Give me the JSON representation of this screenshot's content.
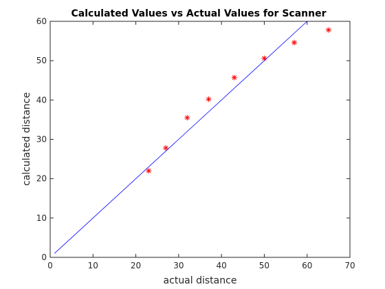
{
  "chart_data": {
    "type": "scatter",
    "title": "Calculated Values vs Actual Values for Scanner",
    "xlabel": "actual distance",
    "ylabel": "calculated distance",
    "xlim": [
      0,
      70
    ],
    "ylim": [
      0,
      60
    ],
    "xticks": [
      0,
      10,
      20,
      30,
      40,
      50,
      60,
      70
    ],
    "yticks": [
      0,
      10,
      20,
      30,
      40,
      50,
      60
    ],
    "grid": false,
    "series": [
      {
        "type": "scatter",
        "marker": "asterisk",
        "color": "#ff0000",
        "x": [
          23,
          27,
          32,
          37,
          43,
          50,
          57,
          65
        ],
        "y": [
          22,
          27.8,
          35.5,
          40.2,
          45.7,
          50.6,
          54.6,
          57.8
        ]
      },
      {
        "type": "line",
        "color": "#0000ff",
        "x": [
          1,
          60
        ],
        "y": [
          1,
          60
        ]
      }
    ]
  }
}
